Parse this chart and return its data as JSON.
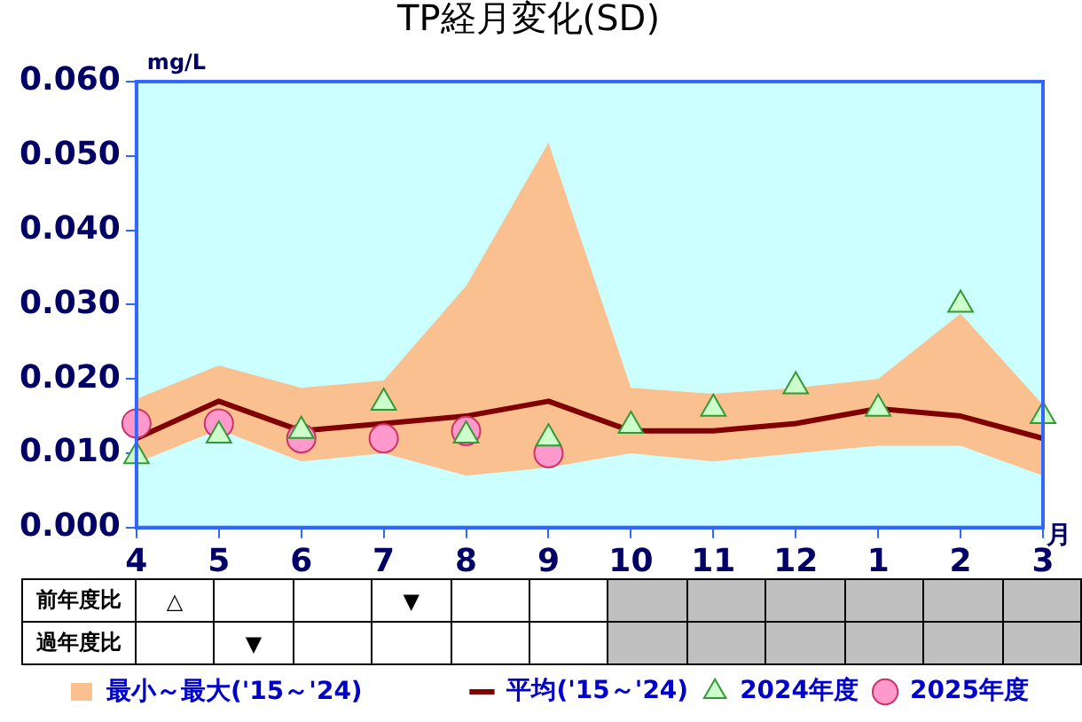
{
  "chart_data": {
    "type": "line",
    "title": "TP経月変化(SD)",
    "xlabel": "月",
    "ylabel": "mg/L",
    "categories": [
      "4",
      "5",
      "6",
      "7",
      "8",
      "9",
      "10",
      "11",
      "12",
      "1",
      "2",
      "3"
    ],
    "ylim": [
      0,
      0.06
    ],
    "yticks": [
      {
        "value": 0,
        "label": "0.000"
      },
      {
        "value": 0.01,
        "label": "0.010"
      },
      {
        "value": 0.02,
        "label": "0.020"
      },
      {
        "value": 0.03,
        "label": "0.030"
      },
      {
        "value": 0.04,
        "label": "0.040"
      },
      {
        "value": 0.05,
        "label": "0.050"
      },
      {
        "value": 0.06,
        "label": "0.060"
      }
    ],
    "grid": false,
    "legend": "bottom",
    "series": [
      {
        "name": "平均('15～'24)",
        "type": "line",
        "color": "#800000",
        "marker": "none",
        "values": [
          0.012,
          0.017,
          0.013,
          0.014,
          0.015,
          0.017,
          0.013,
          0.013,
          0.014,
          0.016,
          0.015,
          0.012
        ],
        "lower": [
          0.0087,
          0.0132,
          0.0089,
          0.01,
          0.007,
          0.0081,
          0.01,
          0.0089,
          0.01,
          0.011,
          0.011,
          0.007
        ],
        "upper": [
          0.0173,
          0.0218,
          0.0188,
          0.0198,
          0.0325,
          0.0518,
          0.0188,
          0.018,
          0.0188,
          0.02,
          0.0288,
          0.0165
        ]
      },
      {
        "name": "2024年度",
        "type": "scatter",
        "color": "#ccffcc",
        "marker": "triangle",
        "values": [
          0.0096,
          0.0124,
          0.013,
          0.0168,
          0.0124,
          0.012,
          0.0137,
          0.016,
          0.019,
          0.016,
          0.03,
          0.015
        ]
      },
      {
        "name": "2025年度",
        "type": "scatter",
        "color": "#ff99cc",
        "marker": "circle",
        "values": [
          0.014,
          0.014,
          0.012,
          0.012,
          0.013,
          0.01,
          null,
          null,
          null,
          null,
          null,
          null
        ]
      }
    ],
    "annotations": [
      "最小～最大('15～'24)",
      "前年度比",
      "△",
      null,
      null,
      "▼",
      null,
      null,
      null,
      null,
      null,
      null,
      null,
      null,
      "過年度比",
      null,
      "▼",
      null,
      null,
      null,
      null,
      null,
      null,
      null,
      null,
      null,
      null
    ]
  }
}
